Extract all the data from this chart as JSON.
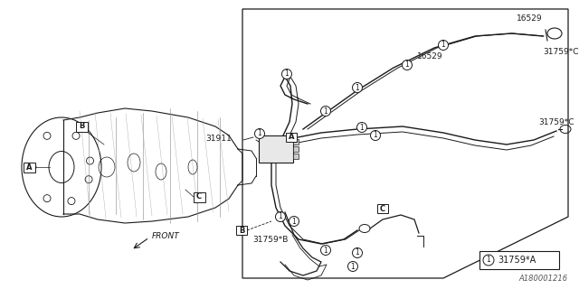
{
  "bg_color": "#ffffff",
  "line_color": "#1a1a1a",
  "text_color": "#1a1a1a",
  "diagram_id": "A180001216",
  "part_31759_star": "31759*",
  "labels": {
    "front": "FRONT",
    "A": "A",
    "B": "B",
    "C": "C",
    "31911": "31911",
    "16529": "16529",
    "31759C": "31759*C",
    "31759B": "31759*B",
    "31759A": "31759*A"
  }
}
